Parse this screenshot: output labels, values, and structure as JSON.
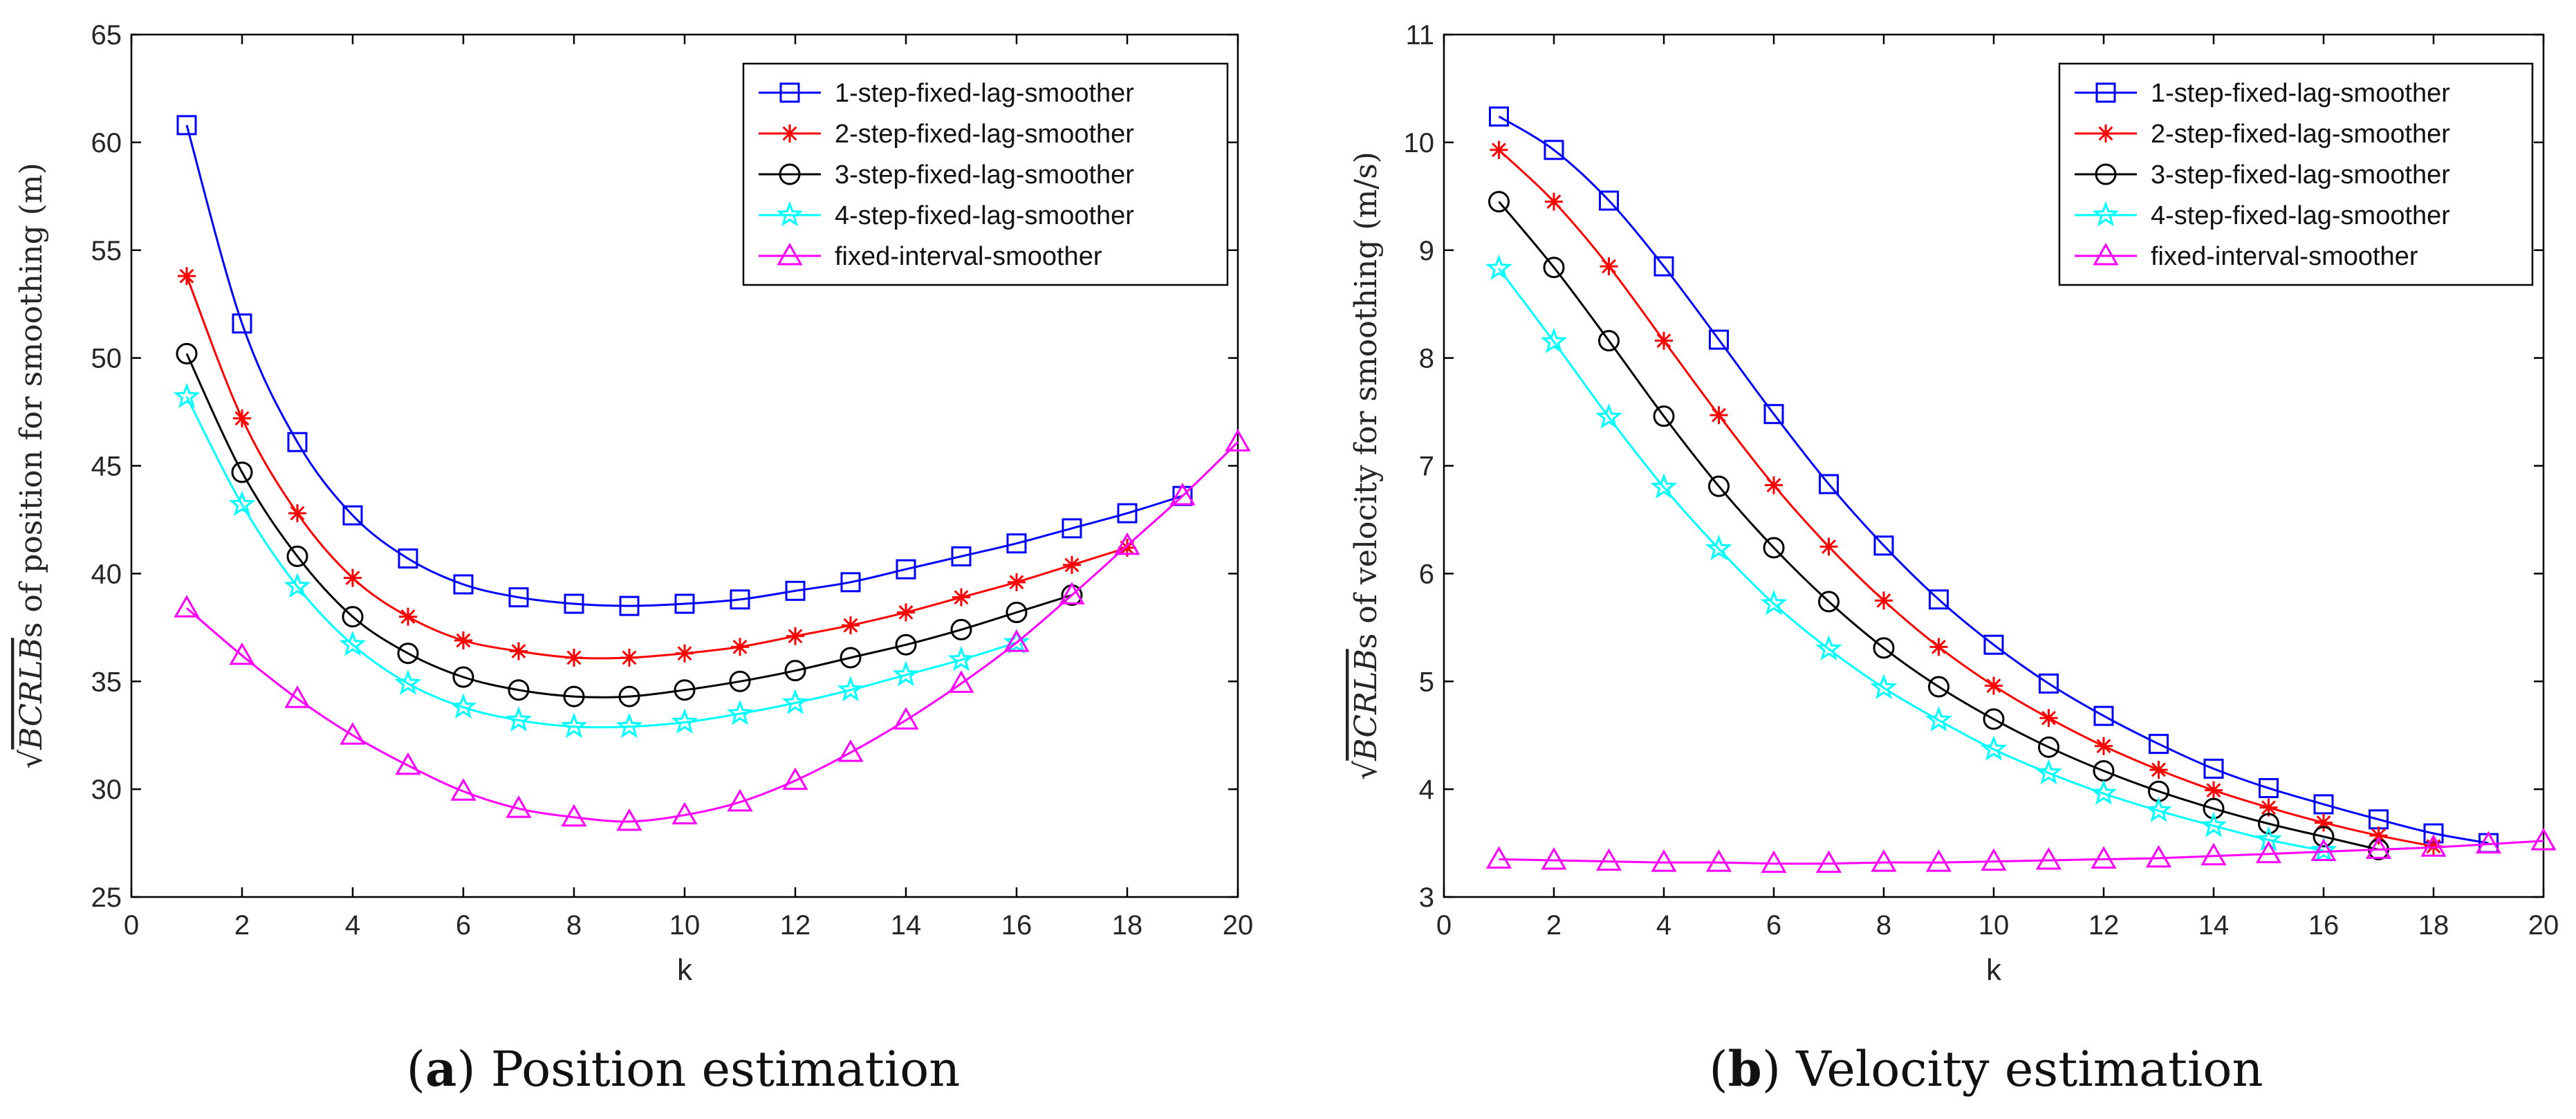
{
  "chart_data": [
    {
      "type": "line",
      "title": "",
      "caption_letter": "a",
      "caption_text": " Position estimation",
      "xlabel": "k",
      "ylabel": "s of position for smoothing (m)",
      "ylabel_sqrt_term": "BCRLB",
      "xlim": [
        0,
        20
      ],
      "ylim": [
        25,
        65
      ],
      "xticks": [
        "0",
        "2",
        "4",
        "6",
        "8",
        "10",
        "12",
        "14",
        "16",
        "18",
        "20"
      ],
      "yticks": [
        "25",
        "30",
        "35",
        "40",
        "45",
        "50",
        "55",
        "60",
        "65"
      ],
      "legend_position": "top-right",
      "series": [
        {
          "name": "1-step-fixed-lag-smoother",
          "color": "#0000ff",
          "marker": "square",
          "x": [
            1,
            2,
            3,
            4,
            5,
            6,
            7,
            8,
            9,
            10,
            11,
            12,
            13,
            14,
            15,
            16,
            17,
            18,
            19
          ],
          "values": [
            60.8,
            51.6,
            46.1,
            42.7,
            40.7,
            39.5,
            38.9,
            38.6,
            38.5,
            38.6,
            38.8,
            39.2,
            39.6,
            40.2,
            40.8,
            41.4,
            42.1,
            42.8,
            43.6
          ]
        },
        {
          "name": "2-step-fixed-lag-smoother",
          "color": "#ff0000",
          "marker": "asterisk",
          "x": [
            1,
            2,
            3,
            4,
            5,
            6,
            7,
            8,
            9,
            10,
            11,
            12,
            13,
            14,
            15,
            16,
            17,
            18
          ],
          "values": [
            53.8,
            47.2,
            42.8,
            39.8,
            38.0,
            36.9,
            36.4,
            36.1,
            36.1,
            36.3,
            36.6,
            37.1,
            37.6,
            38.2,
            38.9,
            39.6,
            40.4,
            41.2
          ]
        },
        {
          "name": "3-step-fixed-lag-smoother",
          "color": "#000000",
          "marker": "circle",
          "x": [
            1,
            2,
            3,
            4,
            5,
            6,
            7,
            8,
            9,
            10,
            11,
            12,
            13,
            14,
            15,
            16,
            17
          ],
          "values": [
            50.2,
            44.7,
            40.8,
            38.0,
            36.3,
            35.2,
            34.6,
            34.3,
            34.3,
            34.6,
            35.0,
            35.5,
            36.1,
            36.7,
            37.4,
            38.2,
            39.0
          ]
        },
        {
          "name": "4-step-fixed-lag-smoother",
          "color": "#00ffff",
          "marker": "star",
          "x": [
            1,
            2,
            3,
            4,
            5,
            6,
            7,
            8,
            9,
            10,
            11,
            12,
            13,
            14,
            15,
            16
          ],
          "values": [
            48.2,
            43.2,
            39.4,
            36.7,
            34.9,
            33.8,
            33.2,
            32.9,
            32.9,
            33.1,
            33.5,
            34.0,
            34.6,
            35.3,
            36.0,
            36.8
          ]
        },
        {
          "name": "fixed-interval-smoother",
          "color": "#ff00ff",
          "marker": "triangle",
          "x": [
            1,
            2,
            3,
            4,
            5,
            6,
            7,
            8,
            9,
            10,
            11,
            12,
            13,
            14,
            15,
            16,
            17,
            18,
            19,
            20
          ],
          "values": [
            38.4,
            36.2,
            34.2,
            32.5,
            31.1,
            29.9,
            29.1,
            28.7,
            28.5,
            28.8,
            29.4,
            30.4,
            31.7,
            33.2,
            34.9,
            36.8,
            39.0,
            41.3,
            43.6,
            46.1
          ]
        }
      ]
    },
    {
      "type": "line",
      "title": "",
      "caption_letter": "b",
      "caption_text": " Velocity estimation",
      "xlabel": "k",
      "ylabel": "s of velocity for smoothing (m/s)",
      "ylabel_sqrt_term": "BCRLB",
      "xlim": [
        0,
        20
      ],
      "ylim": [
        3,
        11
      ],
      "xticks": [
        "0",
        "2",
        "4",
        "6",
        "8",
        "10",
        "12",
        "14",
        "16",
        "18",
        "20"
      ],
      "yticks": [
        "3",
        "4",
        "5",
        "6",
        "7",
        "8",
        "9",
        "10",
        "11"
      ],
      "legend_position": "top-right",
      "series": [
        {
          "name": "1-step-fixed-lag-smoother",
          "color": "#0000ff",
          "marker": "square",
          "x": [
            1,
            2,
            3,
            4,
            5,
            6,
            7,
            8,
            9,
            10,
            11,
            12,
            13,
            14,
            15,
            16,
            17,
            18,
            19
          ],
          "values": [
            10.24,
            9.93,
            9.46,
            8.85,
            8.17,
            7.48,
            6.83,
            6.26,
            5.76,
            5.34,
            4.98,
            4.68,
            4.42,
            4.19,
            4.01,
            3.86,
            3.72,
            3.59,
            3.5
          ]
        },
        {
          "name": "2-step-fixed-lag-smoother",
          "color": "#ff0000",
          "marker": "asterisk",
          "x": [
            1,
            2,
            3,
            4,
            5,
            6,
            7,
            8,
            9,
            10,
            11,
            12,
            13,
            14,
            15,
            16,
            17,
            18
          ],
          "values": [
            9.93,
            9.45,
            8.85,
            8.16,
            7.47,
            6.82,
            6.25,
            5.75,
            5.32,
            4.96,
            4.66,
            4.4,
            4.18,
            3.99,
            3.83,
            3.69,
            3.57,
            3.47
          ]
        },
        {
          "name": "3-step-fixed-lag-smoother",
          "color": "#000000",
          "marker": "circle",
          "x": [
            1,
            2,
            3,
            4,
            5,
            6,
            7,
            8,
            9,
            10,
            11,
            12,
            13,
            14,
            15,
            16,
            17
          ],
          "values": [
            9.45,
            8.84,
            8.16,
            7.46,
            6.81,
            6.24,
            5.74,
            5.31,
            4.95,
            4.65,
            4.39,
            4.17,
            3.98,
            3.82,
            3.68,
            3.56,
            3.44
          ]
        },
        {
          "name": "4-step-fixed-lag-smoother",
          "color": "#00ffff",
          "marker": "star",
          "x": [
            1,
            2,
            3,
            4,
            5,
            6,
            7,
            8,
            9,
            10,
            11,
            12,
            13,
            14,
            15,
            16
          ],
          "values": [
            8.83,
            8.15,
            7.45,
            6.8,
            6.23,
            5.72,
            5.3,
            4.94,
            4.64,
            4.37,
            4.15,
            3.96,
            3.8,
            3.66,
            3.53,
            3.43
          ]
        },
        {
          "name": "fixed-interval-smoother",
          "color": "#ff00ff",
          "marker": "triangle",
          "x": [
            1,
            2,
            3,
            4,
            5,
            6,
            7,
            8,
            9,
            10,
            11,
            12,
            13,
            14,
            15,
            16,
            17,
            18,
            19,
            20
          ],
          "values": [
            3.35,
            3.34,
            3.33,
            3.32,
            3.32,
            3.31,
            3.31,
            3.32,
            3.32,
            3.33,
            3.34,
            3.35,
            3.36,
            3.38,
            3.4,
            3.42,
            3.44,
            3.46,
            3.49,
            3.52
          ]
        }
      ]
    }
  ]
}
